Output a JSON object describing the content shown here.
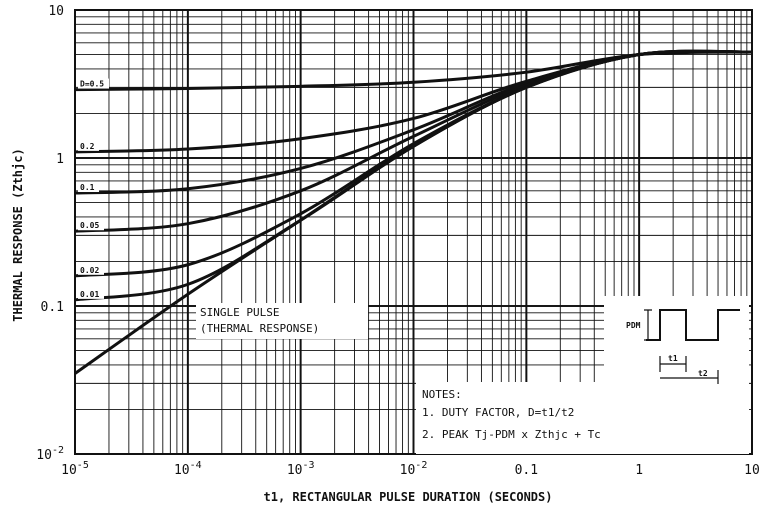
{
  "chart_data": {
    "type": "line",
    "title": "",
    "xlabel": "t1, RECTANGULAR PULSE DURATION (SECONDS)",
    "ylabel": "THERMAL RESPONSE (Zthjc)",
    "x_scale": "log",
    "y_scale": "log",
    "xlim": [
      1e-05,
      10
    ],
    "ylim": [
      0.01,
      10
    ],
    "grid": true,
    "x_tick_labels": [
      {
        "base": "10",
        "exp": "-5"
      },
      {
        "base": "10",
        "exp": "-4"
      },
      {
        "base": "10",
        "exp": "-3"
      },
      {
        "base": "10",
        "exp": "-2"
      },
      {
        "base": "0.1",
        "exp": ""
      },
      {
        "base": "1",
        "exp": ""
      },
      {
        "base": "10",
        "exp": ""
      }
    ],
    "y_tick_labels": [
      {
        "base": "10",
        "exp": "-2"
      },
      {
        "base": "0.1",
        "exp": ""
      },
      {
        "base": "1",
        "exp": ""
      },
      {
        "base": "10",
        "exp": ""
      }
    ],
    "x": [
      1e-05,
      0.0001,
      0.001,
      0.01,
      0.1,
      1,
      10
    ],
    "series": [
      {
        "name": "D=0.5",
        "values": [
          2.9,
          2.95,
          3.05,
          3.25,
          3.8,
          5.0,
          5.2
        ]
      },
      {
        "name": "D=0.2",
        "values": [
          1.1,
          1.15,
          1.35,
          1.85,
          3.3,
          5.0,
          5.2
        ]
      },
      {
        "name": "D=0.1",
        "values": [
          0.58,
          0.62,
          0.85,
          1.55,
          3.2,
          5.0,
          5.2
        ]
      },
      {
        "name": "D=0.05",
        "values": [
          0.32,
          0.36,
          0.6,
          1.4,
          3.1,
          5.0,
          5.2
        ]
      },
      {
        "name": "D=0.02",
        "values": [
          0.16,
          0.19,
          0.42,
          1.25,
          3.0,
          5.0,
          5.2
        ]
      },
      {
        "name": "D=0.01",
        "values": [
          0.11,
          0.14,
          0.38,
          1.2,
          3.0,
          5.0,
          5.2
        ]
      },
      {
        "name": "SINGLE PULSE",
        "values": [
          0.035,
          0.12,
          0.38,
          1.2,
          3.0,
          5.0,
          5.2
        ]
      }
    ],
    "curve_labels": [
      "D=0.5",
      "0.2",
      "0.1",
      "0.05",
      "0.02",
      "0.01"
    ],
    "annotation": {
      "line1": "SINGLE PULSE",
      "line2": "(THERMAL RESPONSE)"
    },
    "notes": {
      "header": "NOTES:",
      "note1": "1. DUTY FACTOR, D=t1/t2",
      "note2_main": "2. PEAK Tj-PDM x Zthjc + Tc"
    },
    "inset": {
      "pdm": "PDM",
      "t1": "t1",
      "t2": "t2"
    }
  }
}
